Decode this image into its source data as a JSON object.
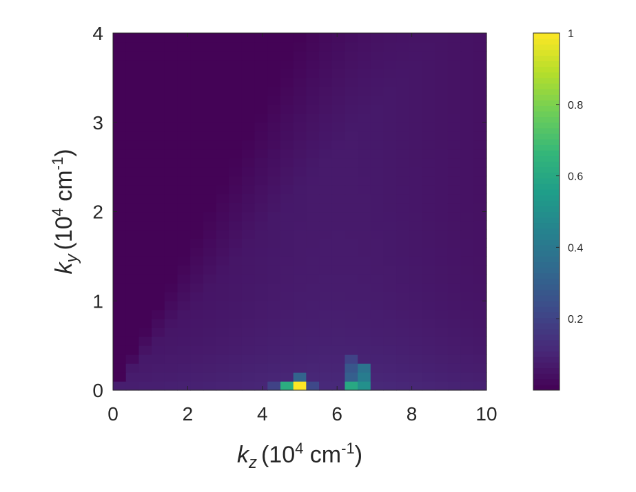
{
  "chart_data": {
    "type": "heatmap",
    "title": "",
    "xlabel": {
      "symbol": "k",
      "sub": "z",
      "unit_pre": "(10",
      "unit_exp": "4",
      "unit_mid": " cm",
      "unit_exp2": "-1",
      "unit_post": ")"
    },
    "ylabel": {
      "symbol": "k",
      "sub": "y",
      "unit_pre": "(10",
      "unit_exp": "4",
      "unit_mid": " cm",
      "unit_exp2": "-1",
      "unit_post": ")"
    },
    "xlim": [
      0,
      10
    ],
    "ylim": [
      0,
      4
    ],
    "xticks": [
      0,
      2,
      4,
      6,
      8,
      10
    ],
    "yticks": [
      0,
      1,
      2,
      3,
      4
    ],
    "x_tick_labels": [
      "0",
      "2",
      "4",
      "6",
      "8",
      "10"
    ],
    "y_tick_labels": [
      "0",
      "1",
      "2",
      "3",
      "4"
    ],
    "grid": {
      "nx": 29,
      "ny": 40,
      "dx": 0.345,
      "dy": 0.1
    },
    "hotspots": [
      {
        "x": 5.0,
        "y": 0.05,
        "value": 1.0
      },
      {
        "x": 4.66,
        "y": 0.05,
        "value": 0.62
      },
      {
        "x": 5.0,
        "y": 0.15,
        "value": 0.32
      },
      {
        "x": 5.34,
        "y": 0.05,
        "value": 0.22
      },
      {
        "x": 4.31,
        "y": 0.05,
        "value": 0.2
      },
      {
        "x": 6.38,
        "y": 0.05,
        "value": 0.6
      },
      {
        "x": 6.72,
        "y": 0.05,
        "value": 0.5
      },
      {
        "x": 6.72,
        "y": 0.15,
        "value": 0.42
      },
      {
        "x": 6.38,
        "y": 0.15,
        "value": 0.3
      },
      {
        "x": 6.72,
        "y": 0.25,
        "value": 0.38
      },
      {
        "x": 6.38,
        "y": 0.25,
        "value": 0.27
      },
      {
        "x": 6.38,
        "y": 0.35,
        "value": 0.2
      }
    ],
    "colorbar": {
      "colormap": "viridis",
      "range": [
        0,
        1
      ],
      "ticks": [
        0.2,
        0.4,
        0.6,
        0.8,
        1
      ],
      "tick_labels": [
        "0.2",
        "0.4",
        "0.6",
        "0.8",
        "1"
      ]
    },
    "colors": {
      "viridis": [
        "#440154",
        "#482878",
        "#3e4989",
        "#31688e",
        "#26828e",
        "#1f9e89",
        "#35b779",
        "#6ece58",
        "#b5de2b",
        "#fde725"
      ]
    }
  }
}
